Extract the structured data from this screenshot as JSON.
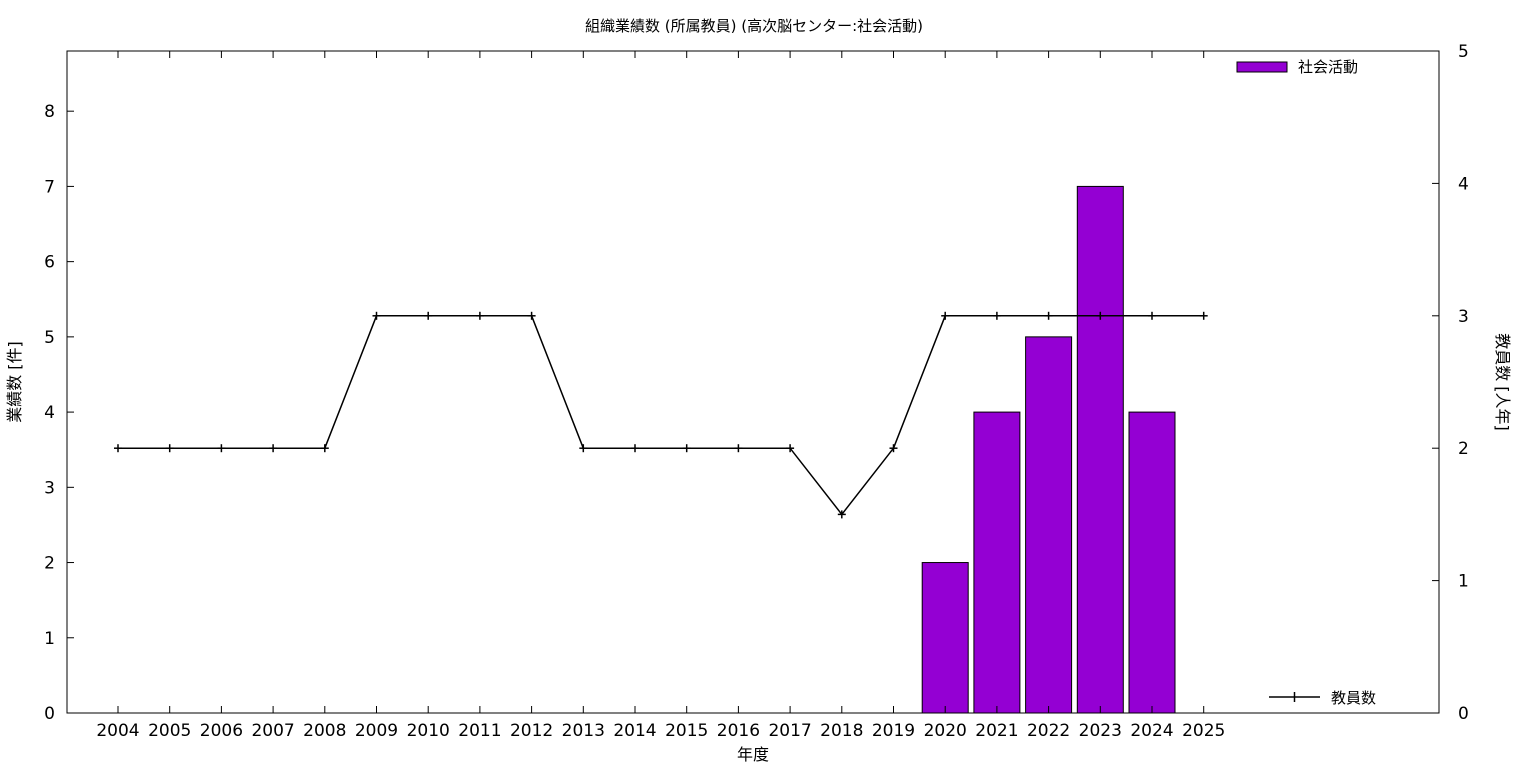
{
  "chart_data": {
    "type": "bar+line",
    "title": "組織業績数 (所属教員) (高次脳センター:社会活動)",
    "xlabel": "年度",
    "ylabel": "業績数 [件]",
    "y2label": "教員数 [人年]",
    "categories": [
      "2004",
      "2005",
      "2006",
      "2007",
      "2008",
      "2009",
      "2010",
      "2011",
      "2012",
      "2013",
      "2014",
      "2015",
      "2016",
      "2017",
      "2018",
      "2019",
      "2020",
      "2021",
      "2022",
      "2023",
      "2024",
      "2025"
    ],
    "ylim": [
      0,
      8.8
    ],
    "yticks": [
      0,
      1,
      2,
      3,
      4,
      5,
      6,
      7,
      8
    ],
    "y2lim": [
      0,
      5
    ],
    "y2ticks": [
      0,
      1,
      2,
      3,
      4,
      5
    ],
    "grid": false,
    "series": [
      {
        "name": "社会活動",
        "kind": "bar",
        "axis": "left",
        "color": "#9400d3",
        "values": [
          0,
          0,
          0,
          0,
          0,
          0,
          0,
          0,
          0,
          0,
          0,
          0,
          0,
          0,
          0,
          0,
          2,
          4,
          5,
          7,
          4,
          0
        ]
      },
      {
        "name": "教員数",
        "kind": "line",
        "axis": "right",
        "color": "#000000",
        "values": [
          2,
          2,
          2,
          2,
          2,
          3,
          3,
          3,
          3,
          2,
          2,
          2,
          2,
          2,
          1.5,
          2,
          3,
          3,
          3,
          3,
          3,
          3
        ]
      }
    ],
    "legend_placement": [
      "top-right",
      "bottom-right"
    ]
  }
}
